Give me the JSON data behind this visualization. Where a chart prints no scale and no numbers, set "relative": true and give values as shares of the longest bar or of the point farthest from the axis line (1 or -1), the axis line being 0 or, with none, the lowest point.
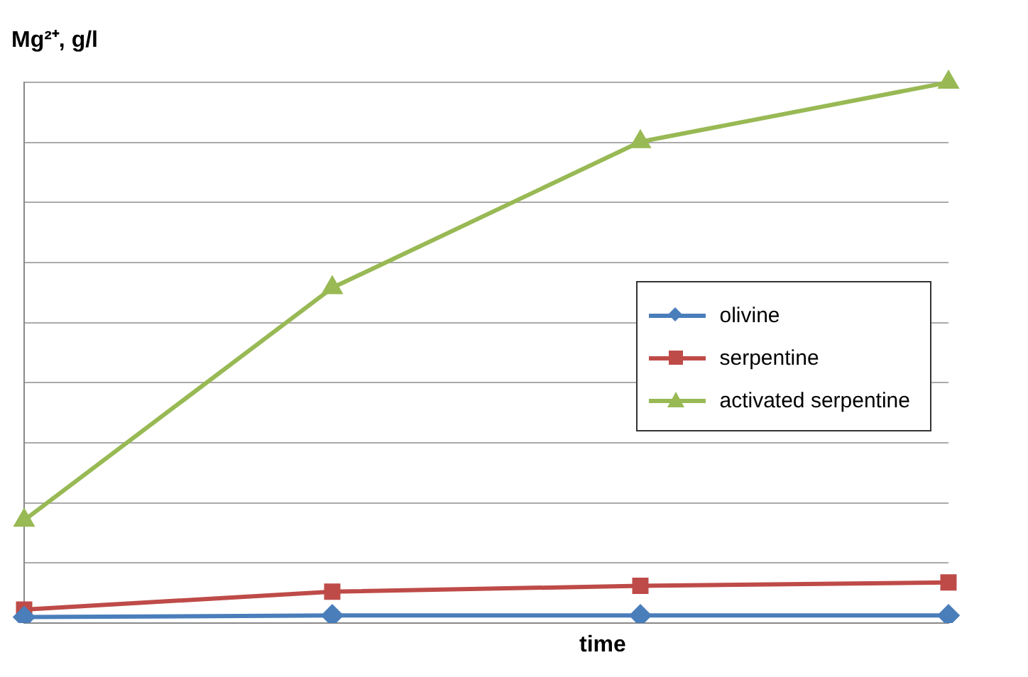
{
  "chart_data": {
    "type": "line",
    "relative": true,
    "ylabel": "Mg²⁺, g/l",
    "xlabel": "time",
    "categories": [
      null,
      null,
      null,
      null
    ],
    "grid": "y",
    "legend": "right",
    "series": [
      {
        "name": "olivine",
        "color": "#4a7ebb",
        "marker": "diamond",
        "values": [
          0.011,
          0.014,
          0.014,
          0.014
        ]
      },
      {
        "name": "serpentine",
        "color": "#be4b48",
        "marker": "square",
        "values": [
          0.025,
          0.058,
          0.069,
          0.075
        ]
      },
      {
        "name": "activated serpentine",
        "color": "#98b954",
        "marker": "triangle",
        "values": [
          0.19,
          0.62,
          0.89,
          1.0
        ]
      }
    ]
  }
}
